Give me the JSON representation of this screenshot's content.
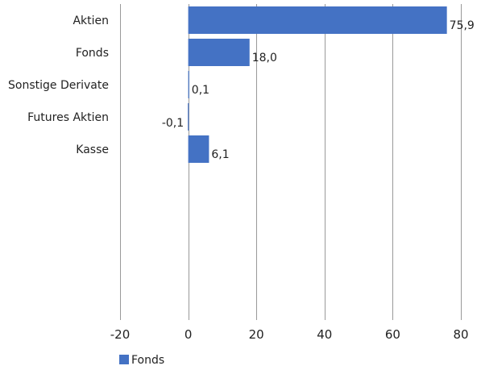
{
  "chart_data": {
    "type": "bar",
    "orientation": "horizontal",
    "categories": [
      "Aktien",
      "Fonds",
      "Sonstige Derivate",
      "Futures Aktien",
      "Kasse"
    ],
    "series": [
      {
        "name": "Fonds",
        "values": [
          75.9,
          18.0,
          0.1,
          -0.1,
          6.1
        ],
        "labels": [
          "75,9",
          "18,0",
          "0,1",
          "-0,1",
          "6,1"
        ]
      }
    ],
    "xlim": [
      -20,
      80
    ],
    "xticks": [
      -20,
      0,
      20,
      40,
      60,
      80
    ],
    "xtick_labels": [
      "-20",
      "0",
      "20",
      "40",
      "60",
      "80"
    ],
    "grid": true,
    "legend_position": "bottom-left",
    "colors": {
      "bar": "#4472c4",
      "grid": "#999999"
    }
  }
}
